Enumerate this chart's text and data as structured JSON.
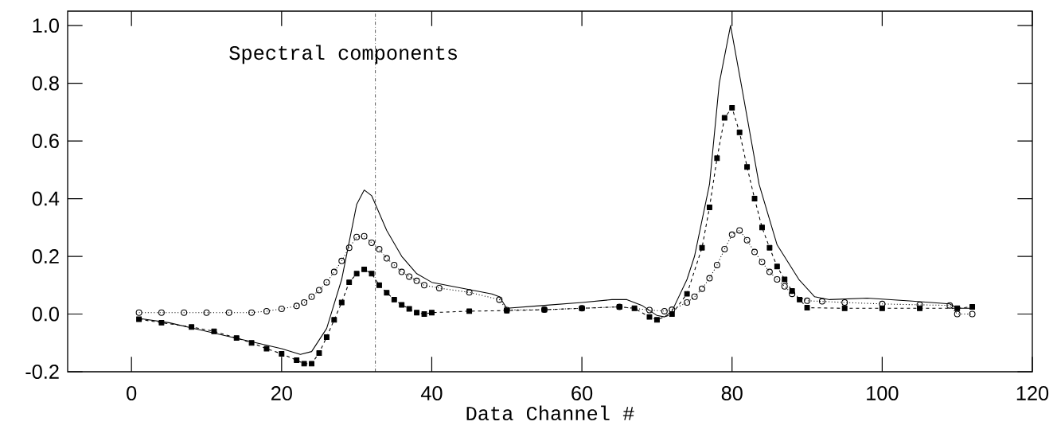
{
  "chart_data": {
    "type": "line",
    "xlabel": "Data Channel #",
    "annotations": [
      "Spectral components"
    ],
    "xlim": [
      -8.5,
      120
    ],
    "ylim": [
      -0.2,
      1.05
    ],
    "xticks": [
      0,
      20,
      40,
      60,
      80,
      100,
      120
    ],
    "yticks": [
      {
        "value": -0.2,
        "label": "-0.2"
      },
      {
        "value": 0,
        "label": "0.0"
      },
      {
        "value": 0.2,
        "label": "0.2"
      },
      {
        "value": 0.4,
        "label": "0.4"
      },
      {
        "value": 0.6,
        "label": "0.6"
      },
      {
        "value": 0.8,
        "label": "0.8"
      },
      {
        "value": 1.0,
        "label": "1.0"
      }
    ],
    "grid": false,
    "ref_lines": [
      {
        "axis": "x",
        "value": 32.5,
        "color": "#000000",
        "line_style": "dashdot"
      }
    ],
    "series": [
      {
        "color": "#000000",
        "marker": "none",
        "line_style": "solid",
        "x": [
          1,
          5,
          10,
          15,
          20,
          22.5,
          24,
          26,
          28,
          30,
          31,
          32,
          34,
          36,
          38,
          40,
          44,
          48,
          49,
          50,
          55,
          60,
          64,
          66,
          68,
          70,
          71,
          72,
          74,
          75,
          77,
          78.3,
          79.8,
          81.2,
          83.6,
          86,
          88.9,
          91,
          93,
          98,
          104,
          109,
          110,
          112
        ],
        "values": [
          -0.015,
          -0.03,
          -0.06,
          -0.09,
          -0.12,
          -0.14,
          -0.13,
          -0.05,
          0.12,
          0.38,
          0.43,
          0.41,
          0.29,
          0.2,
          0.14,
          0.11,
          0.09,
          0.07,
          0.06,
          0.02,
          0.03,
          0.04,
          0.05,
          0.05,
          0.03,
          -0.005,
          -0.01,
          0.01,
          0.12,
          0.2,
          0.45,
          0.8,
          1.0,
          0.8,
          0.45,
          0.24,
          0.12,
          0.06,
          0.05,
          0.055,
          0.045,
          0.035,
          0.02,
          0.02
        ]
      },
      {
        "color": "#000000",
        "marker": "square",
        "line_style": "dashed",
        "x": [
          1,
          4,
          8,
          11,
          14,
          16,
          18,
          20,
          22,
          23,
          24,
          25,
          26,
          27,
          28,
          29,
          30,
          31,
          32,
          33,
          34,
          35,
          36,
          37,
          38,
          39,
          40,
          45,
          50,
          55,
          60,
          65,
          67,
          69,
          70,
          72,
          74,
          76,
          77,
          78,
          79,
          80,
          81,
          82,
          83,
          84,
          85,
          86,
          87,
          88,
          89,
          90,
          95,
          100,
          105,
          110,
          112
        ],
        "values": [
          -0.018,
          -0.03,
          -0.045,
          -0.06,
          -0.083,
          -0.1,
          -0.12,
          -0.138,
          -0.16,
          -0.172,
          -0.172,
          -0.135,
          -0.08,
          -0.02,
          0.04,
          0.11,
          0.14,
          0.155,
          0.14,
          0.1,
          0.074,
          0.05,
          0.032,
          0.018,
          0.005,
          0.0,
          0.005,
          0.01,
          0.012,
          0.015,
          0.02,
          0.025,
          0.02,
          -0.01,
          -0.02,
          0.0,
          0.07,
          0.23,
          0.37,
          0.54,
          0.68,
          0.715,
          0.63,
          0.51,
          0.4,
          0.3,
          0.23,
          0.165,
          0.12,
          0.08,
          0.05,
          0.022,
          0.02,
          0.02,
          0.02,
          0.02,
          0.025
        ]
      },
      {
        "color": "#000000",
        "marker": "circle",
        "line_style": "dotted",
        "x": [
          1,
          4,
          7,
          10,
          13,
          16,
          18,
          20,
          22,
          23,
          24,
          25,
          26,
          27,
          28,
          29,
          30,
          31,
          32,
          33,
          34,
          35,
          36,
          37,
          38,
          39,
          41,
          45,
          49,
          50,
          55,
          60,
          65,
          69,
          71,
          72,
          74,
          75,
          76,
          77,
          78,
          79,
          80,
          81,
          82,
          83,
          84,
          85,
          86,
          87,
          88,
          90,
          92,
          95,
          100,
          105,
          109,
          110,
          112
        ],
        "values": [
          0.005,
          0.005,
          0.005,
          0.005,
          0.005,
          0.005,
          0.01,
          0.018,
          0.028,
          0.04,
          0.06,
          0.083,
          0.11,
          0.146,
          0.184,
          0.23,
          0.267,
          0.27,
          0.247,
          0.225,
          0.193,
          0.17,
          0.146,
          0.13,
          0.115,
          0.1,
          0.09,
          0.075,
          0.05,
          0.014,
          0.015,
          0.02,
          0.025,
          0.014,
          0.01,
          0.015,
          0.04,
          0.06,
          0.088,
          0.124,
          0.17,
          0.225,
          0.275,
          0.29,
          0.256,
          0.215,
          0.18,
          0.146,
          0.12,
          0.096,
          0.07,
          0.046,
          0.044,
          0.04,
          0.035,
          0.032,
          0.03,
          0.0,
          0.0
        ]
      }
    ]
  }
}
